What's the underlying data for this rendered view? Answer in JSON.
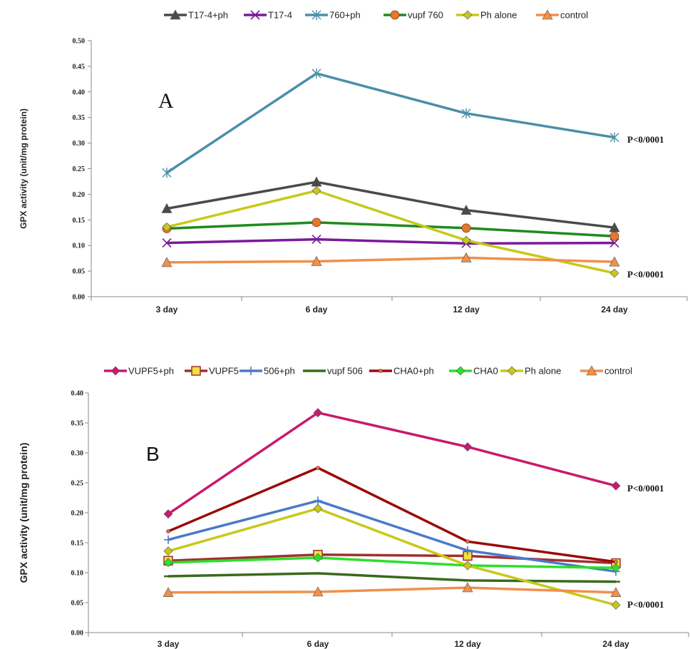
{
  "chart_data": [
    {
      "type": "line",
      "panel_letter": "A",
      "ylabel": "GPX activity (unit/mg protein)",
      "ylim": [
        0,
        0.5
      ],
      "yticks": [
        "0.00",
        "0.05",
        "0.10",
        "0.15",
        "0.20",
        "0.25",
        "0.30",
        "0.35",
        "0.40",
        "0.45",
        "0.50"
      ],
      "categories": [
        "3 day",
        "6 day",
        "12 day",
        "24 day"
      ],
      "legend_position": "top",
      "series": [
        {
          "name": "T17-4+ph",
          "color": "#4a4a4a",
          "marker": "triangle",
          "values": [
            0.172,
            0.224,
            0.169,
            0.135
          ]
        },
        {
          "name": "T17-4",
          "color": "#7a1a9a",
          "marker": "x",
          "values": [
            0.105,
            0.112,
            0.104,
            0.105
          ]
        },
        {
          "name": "760+ph",
          "color": "#4a8fa8",
          "marker": "asterisk",
          "values": [
            0.242,
            0.436,
            0.358,
            0.311
          ]
        },
        {
          "name": "vupf 760",
          "color": "#1f8a1f",
          "marker": "circle",
          "values": [
            0.133,
            0.145,
            0.134,
            0.118
          ]
        },
        {
          "name": "Ph alone",
          "color": "#c8c81a",
          "marker": "diamond",
          "values": [
            0.136,
            0.207,
            0.11,
            0.046
          ]
        },
        {
          "name": "control",
          "color": "#f0904a",
          "marker": "triangle",
          "values": [
            0.067,
            0.069,
            0.076,
            0.068
          ]
        }
      ],
      "annotations": [
        "P<0/0001",
        "P<0/0001"
      ]
    },
    {
      "type": "line",
      "panel_letter": "B",
      "ylabel": "GPX activity (unit/mg protein)",
      "ylim": [
        0,
        0.4
      ],
      "yticks": [
        "0.00",
        "0.05",
        "0.10",
        "0.15",
        "0.20",
        "0.25",
        "0.30",
        "0.35",
        "0.40"
      ],
      "categories": [
        "3 day",
        "6 day",
        "12 day",
        "24 day"
      ],
      "legend_position": "top",
      "series": [
        {
          "name": "VUPF5+ph",
          "color": "#c81a6e",
          "marker": "diamond",
          "values": [
            0.198,
            0.367,
            0.31,
            0.245
          ]
        },
        {
          "name": "VUPF5",
          "color": "#a03030",
          "marker": "square",
          "values": [
            0.12,
            0.13,
            0.128,
            0.116
          ]
        },
        {
          "name": "506+ph",
          "color": "#4a7ac8",
          "marker": "plus",
          "values": [
            0.155,
            0.22,
            0.137,
            0.102
          ]
        },
        {
          "name": "vupf 506",
          "color": "#3a6a1a",
          "marker": "dash",
          "values": [
            0.094,
            0.099,
            0.087,
            0.085
          ]
        },
        {
          "name": "CHA0+ph",
          "color": "#9a0a0a",
          "marker": "dot",
          "values": [
            0.169,
            0.275,
            0.152,
            0.118
          ]
        },
        {
          "name": "CHA0",
          "color": "#2ae02a",
          "marker": "diamond",
          "values": [
            0.117,
            0.125,
            0.112,
            0.108
          ]
        },
        {
          "name": "Ph alone",
          "color": "#c8c81a",
          "marker": "diamond",
          "values": [
            0.136,
            0.207,
            0.112,
            0.046
          ]
        },
        {
          "name": "control",
          "color": "#f0904a",
          "marker": "triangle",
          "values": [
            0.067,
            0.068,
            0.075,
            0.067
          ]
        }
      ],
      "annotations": [
        "P<0/0001",
        "P<0/0001"
      ]
    }
  ]
}
